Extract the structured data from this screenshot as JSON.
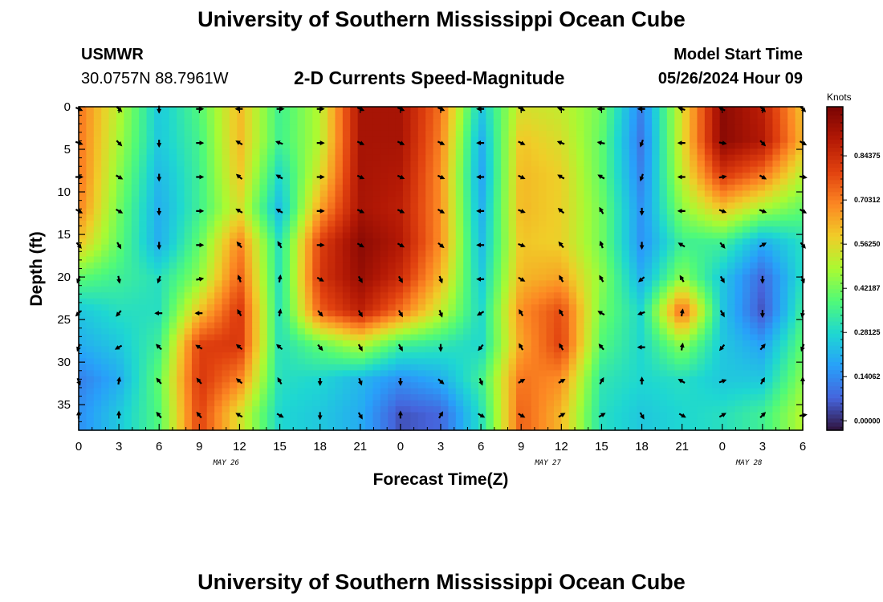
{
  "page": {
    "title_top": "University of Southern Mississippi Ocean Cube",
    "title_bottom": "University of Southern Mississippi Ocean Cube",
    "station": "USMWR",
    "coords": "30.0757N  88.7961W",
    "subtitle": "2-D Currents Speed-Magnitude",
    "model_label": "Model Start Time",
    "model_time": "05/26/2024 Hour 09"
  },
  "chart_data": {
    "type": "heatmap",
    "title": "2-D Currents Speed-Magnitude",
    "xlabel": "Forecast Time(Z)",
    "ylabel": "Depth (ft)",
    "x_ticks": [
      "0",
      "3",
      "6",
      "9",
      "12",
      "15",
      "18",
      "21",
      "0",
      "3",
      "6",
      "9",
      "12",
      "15",
      "18",
      "21",
      "0",
      "3",
      "6"
    ],
    "x_hours": [
      0,
      3,
      6,
      9,
      12,
      15,
      18,
      21,
      24,
      27,
      30,
      33,
      36,
      39,
      42,
      45,
      48,
      51,
      54
    ],
    "date_labels": [
      {
        "label": "MAY 26",
        "hour": 11
      },
      {
        "label": "MAY 27",
        "hour": 35
      },
      {
        "label": "MAY 28",
        "hour": 50
      }
    ],
    "y_ticks": [
      0,
      5,
      10,
      15,
      20,
      25,
      30,
      35
    ],
    "xlim": [
      0,
      54
    ],
    "ylim": [
      0,
      38
    ],
    "colorbar": {
      "title": "Knots",
      "ticks": [
        "0.84375",
        "0.70312",
        "0.56250",
        "0.42187",
        "0.28125",
        "0.14062",
        "0.00000"
      ],
      "tick_values": [
        0.84375,
        0.703125,
        0.5625,
        0.421875,
        0.28125,
        0.140625,
        0.0
      ],
      "vmin": -0.03,
      "vmax": 1.0
    },
    "grid_hours": [
      0,
      3,
      6,
      9,
      12,
      15,
      18,
      21,
      24,
      27,
      30,
      33,
      36,
      39,
      42,
      45,
      48,
      51,
      54
    ],
    "grid_depths": [
      0,
      4,
      8,
      12,
      16,
      20,
      24,
      28,
      32,
      36
    ],
    "speed_knots": [
      [
        0.72,
        0.5,
        0.25,
        0.38,
        0.62,
        0.35,
        0.5,
        0.92,
        0.92,
        0.72,
        0.25,
        0.55,
        0.52,
        0.42,
        0.12,
        0.55,
        0.97,
        0.88,
        0.6
      ],
      [
        0.72,
        0.48,
        0.25,
        0.36,
        0.62,
        0.35,
        0.5,
        0.92,
        0.92,
        0.7,
        0.2,
        0.6,
        0.55,
        0.4,
        0.1,
        0.55,
        0.97,
        0.9,
        0.62
      ],
      [
        0.72,
        0.45,
        0.22,
        0.35,
        0.6,
        0.28,
        0.55,
        0.92,
        0.9,
        0.68,
        0.18,
        0.62,
        0.58,
        0.4,
        0.12,
        0.52,
        0.82,
        0.72,
        0.5
      ],
      [
        0.7,
        0.42,
        0.2,
        0.35,
        0.55,
        0.22,
        0.65,
        0.92,
        0.88,
        0.68,
        0.2,
        0.62,
        0.58,
        0.42,
        0.15,
        0.45,
        0.6,
        0.48,
        0.4
      ],
      [
        0.6,
        0.4,
        0.2,
        0.4,
        0.7,
        0.3,
        0.8,
        0.97,
        0.9,
        0.68,
        0.22,
        0.6,
        0.58,
        0.42,
        0.15,
        0.35,
        0.35,
        0.2,
        0.3
      ],
      [
        0.4,
        0.35,
        0.3,
        0.45,
        0.75,
        0.3,
        0.82,
        0.95,
        0.85,
        0.62,
        0.25,
        0.62,
        0.65,
        0.45,
        0.2,
        0.45,
        0.25,
        0.08,
        0.3
      ],
      [
        0.25,
        0.3,
        0.3,
        0.6,
        0.82,
        0.3,
        0.75,
        0.88,
        0.72,
        0.52,
        0.28,
        0.68,
        0.78,
        0.42,
        0.28,
        0.75,
        0.25,
        0.05,
        0.35
      ],
      [
        0.2,
        0.25,
        0.35,
        0.8,
        0.82,
        0.3,
        0.4,
        0.5,
        0.35,
        0.32,
        0.28,
        0.65,
        0.8,
        0.38,
        0.28,
        0.45,
        0.25,
        0.18,
        0.4
      ],
      [
        0.12,
        0.2,
        0.4,
        0.82,
        0.7,
        0.3,
        0.28,
        0.22,
        0.15,
        0.2,
        0.35,
        0.72,
        0.68,
        0.32,
        0.28,
        0.3,
        0.25,
        0.25,
        0.45
      ],
      [
        0.15,
        0.25,
        0.38,
        0.8,
        0.55,
        0.28,
        0.25,
        0.2,
        0.05,
        0.08,
        0.3,
        0.75,
        0.62,
        0.3,
        0.25,
        0.28,
        0.3,
        0.35,
        0.5
      ]
    ],
    "direction_deg": [
      [
        115,
        135,
        180,
        90,
        270,
        90,
        90,
        115,
        115,
        115,
        270,
        115,
        290,
        270,
        270,
        290,
        300,
        135,
        135
      ],
      [
        110,
        135,
        180,
        90,
        300,
        290,
        90,
        115,
        115,
        115,
        270,
        115,
        290,
        280,
        200,
        270,
        100,
        135,
        120
      ],
      [
        90,
        120,
        180,
        90,
        310,
        300,
        90,
        115,
        115,
        115,
        270,
        115,
        300,
        300,
        200,
        270,
        80,
        120,
        100
      ],
      [
        120,
        120,
        180,
        90,
        300,
        300,
        90,
        115,
        115,
        120,
        270,
        110,
        310,
        330,
        180,
        270,
        110,
        110,
        120
      ],
      [
        140,
        150,
        180,
        90,
        320,
        330,
        90,
        120,
        120,
        130,
        270,
        110,
        320,
        340,
        180,
        300,
        140,
        60,
        140
      ],
      [
        200,
        170,
        200,
        80,
        340,
        10,
        120,
        150,
        150,
        160,
        270,
        120,
        330,
        330,
        230,
        330,
        150,
        180,
        160
      ],
      [
        225,
        220,
        270,
        270,
        330,
        10,
        140,
        150,
        150,
        160,
        240,
        330,
        330,
        300,
        250,
        10,
        150,
        180,
        190
      ],
      [
        200,
        240,
        315,
        300,
        310,
        310,
        140,
        150,
        150,
        180,
        220,
        330,
        330,
        320,
        270,
        10,
        220,
        40,
        200
      ],
      [
        160,
        10,
        320,
        320,
        310,
        330,
        180,
        160,
        180,
        130,
        160,
        60,
        60,
        30,
        0,
        300,
        70,
        30,
        0
      ],
      [
        0,
        0,
        320,
        320,
        300,
        120,
        180,
        150,
        0,
        30,
        120,
        120,
        60,
        60,
        150,
        120,
        60,
        45,
        80
      ]
    ]
  }
}
